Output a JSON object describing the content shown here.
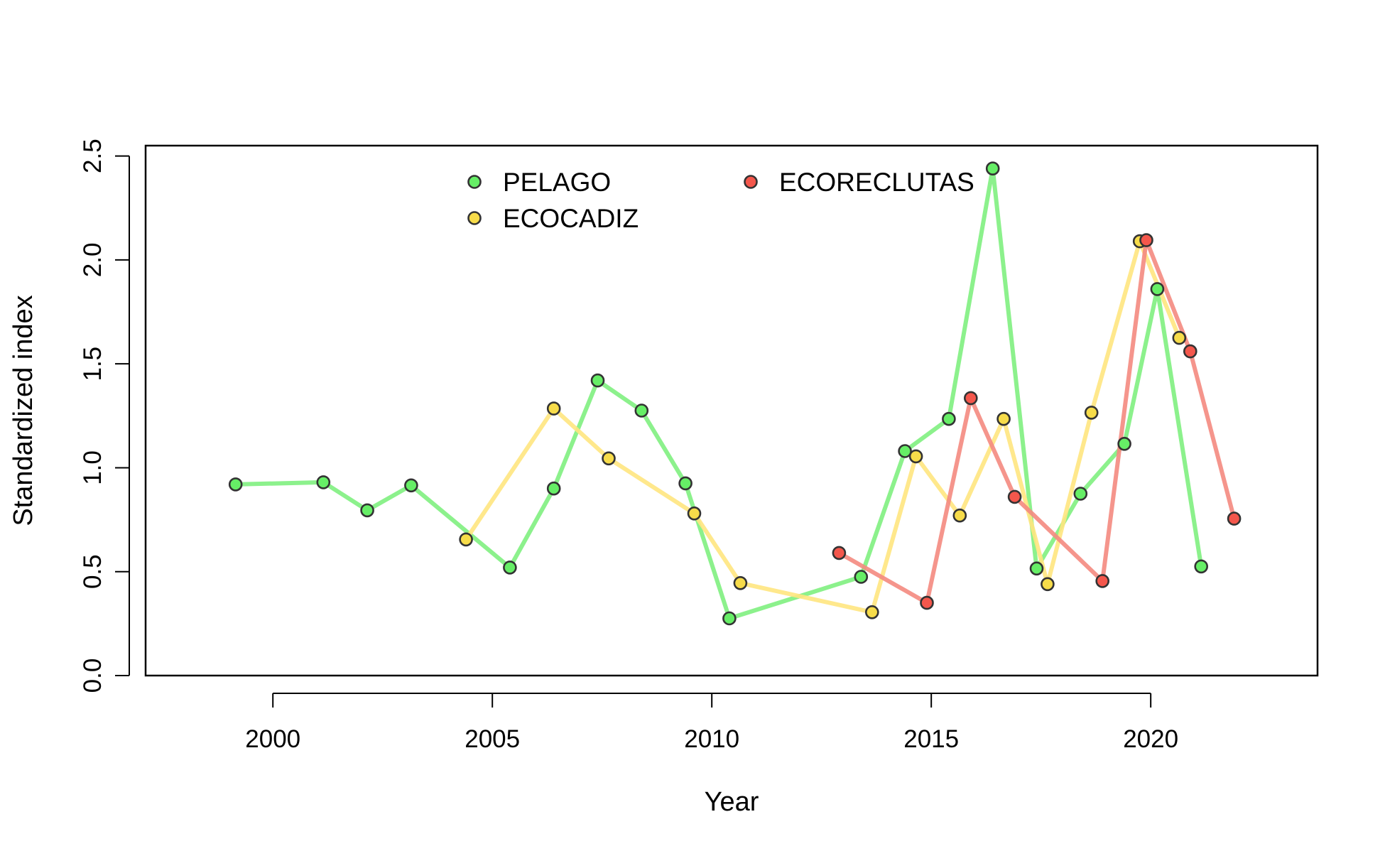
{
  "chart_data": {
    "type": "line",
    "title": "",
    "xlabel": "Year",
    "ylabel": "Standardized index",
    "xlim": [
      1997.1,
      2023.8
    ],
    "ylim": [
      0,
      2.55
    ],
    "x_ticks": [
      2000,
      2005,
      2010,
      2015,
      2020
    ],
    "x_tick_labels": [
      "2000",
      "2005",
      "2010",
      "2015",
      "2020"
    ],
    "y_ticks": [
      0,
      0.5,
      1,
      1.5,
      2,
      2.5
    ],
    "y_tick_labels": [
      "0.0",
      "0.5",
      "1.0",
      "1.5",
      "2.0",
      "2.5"
    ],
    "grid": false,
    "legend_position": "top-center",
    "series": [
      {
        "name": "PELAGO",
        "line_color": "#7fef7f",
        "point_color": "#66ee66",
        "x": [
          1999.15,
          2001.15,
          2002.15,
          2003.15,
          2005.4,
          2006.4,
          2007.4,
          2008.4,
          2009.4,
          2010.4,
          2013.4,
          2014.4,
          2015.4,
          2016.4,
          2017.4,
          2018.4,
          2019.4,
          2020.15,
          2021.15
        ],
        "y": [
          0.92,
          0.93,
          0.795,
          0.915,
          0.52,
          0.9,
          1.42,
          1.275,
          0.925,
          0.275,
          0.475,
          1.08,
          1.235,
          2.44,
          0.515,
          0.875,
          1.115,
          1.86,
          0.525
        ]
      },
      {
        "name": "ECOCADIZ",
        "line_color": "#ffe680",
        "point_color": "#f7dc4a",
        "x": [
          2004.4,
          2006.4,
          2007.65,
          2009.6,
          2010.65,
          2013.65,
          2014.65,
          2015.65,
          2016.65,
          2017.65,
          2018.65,
          2019.75,
          2020.65
        ],
        "y": [
          0.655,
          1.285,
          1.045,
          0.78,
          0.445,
          0.305,
          1.055,
          0.77,
          1.235,
          0.44,
          1.265,
          2.09,
          1.625
        ]
      },
      {
        "name": "ECORECLUTAS",
        "line_color": "#f48a80",
        "point_color": "#f4574c",
        "x": [
          2012.9,
          2014.9,
          2015.9,
          2016.9,
          2018.9,
          2019.9,
          2020.9,
          2021.9
        ],
        "y": [
          0.59,
          0.35,
          1.335,
          0.86,
          0.455,
          2.095,
          1.56,
          0.755
        ]
      }
    ]
  }
}
